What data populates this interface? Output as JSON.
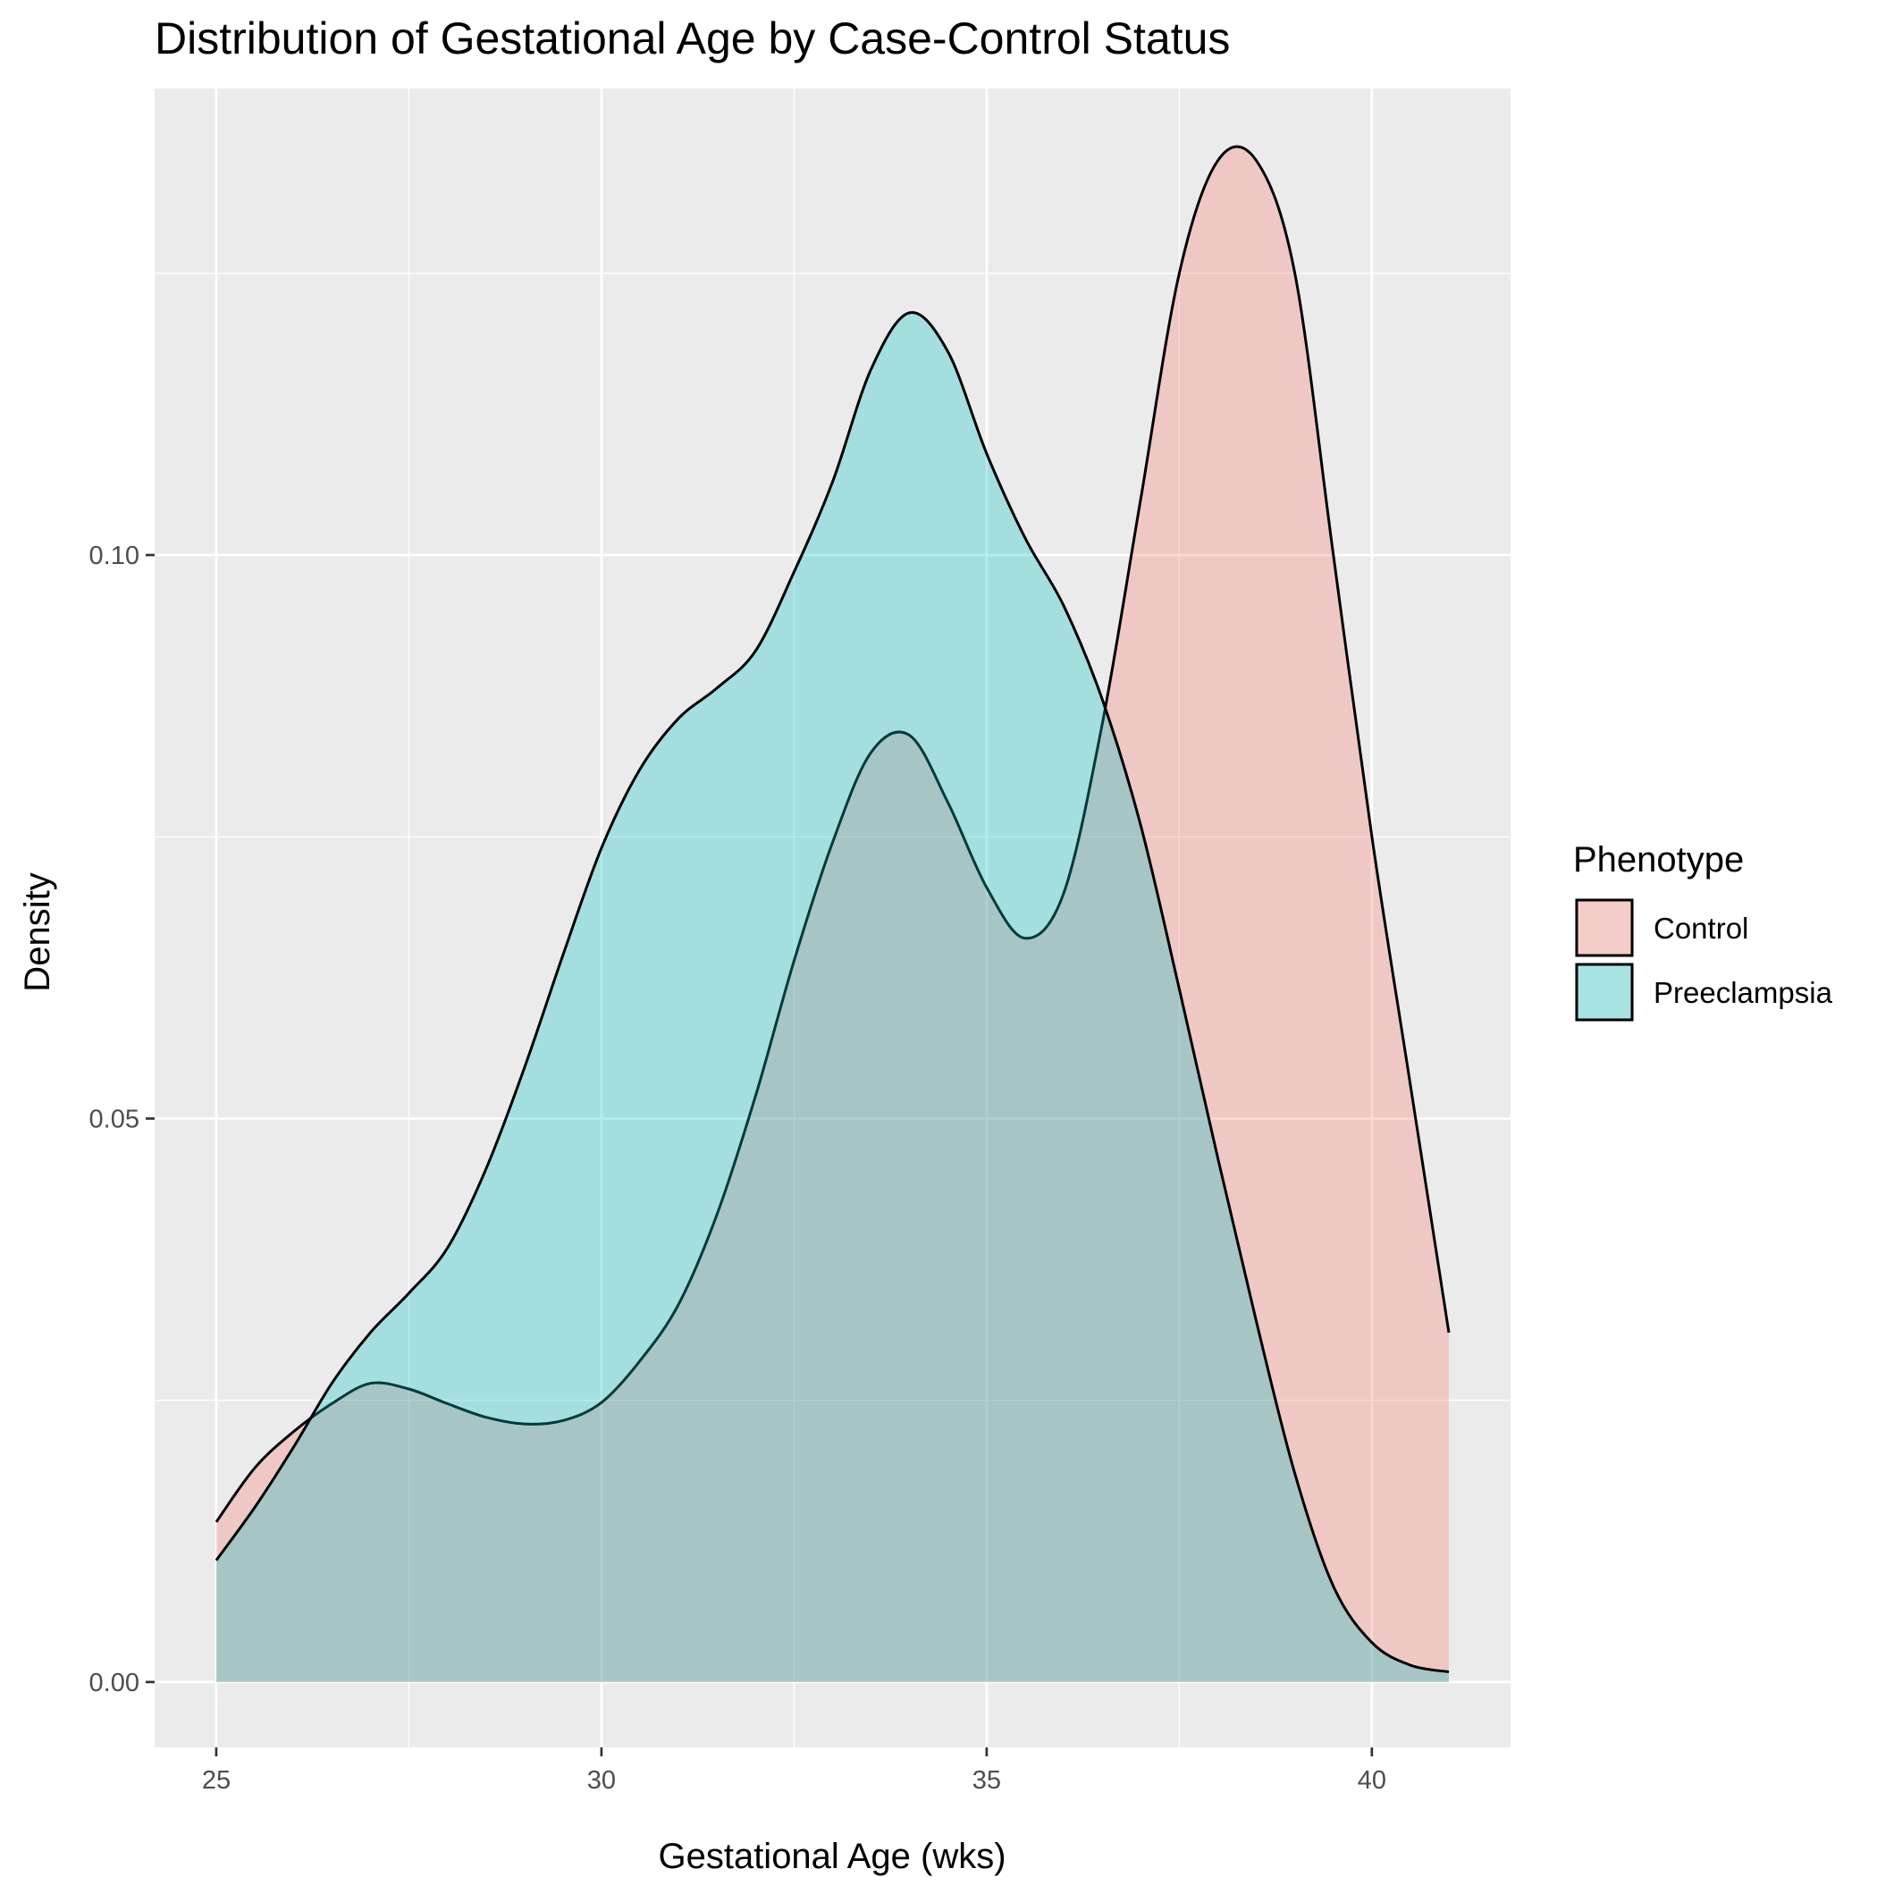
{
  "chart_data": {
    "type": "area",
    "title": "Distribution of Gestational Age by Case-Control Status",
    "xlabel": "Gestational Age (wks)",
    "ylabel": "Density",
    "xlim": [
      24.2,
      41.8
    ],
    "ylim": [
      -0.0058,
      0.1414
    ],
    "x_ticks": [
      25,
      30,
      35,
      40
    ],
    "x_tick_labels": [
      "25",
      "30",
      "35",
      "40"
    ],
    "y_ticks": [
      0.0,
      0.05,
      0.1
    ],
    "y_tick_labels": [
      "0.00",
      "0.05",
      "0.10"
    ],
    "grid": true,
    "legend_title": "Phenotype",
    "legend_position": "right",
    "series": [
      {
        "name": "Control",
        "color": "#F8766D",
        "x": [
          25,
          25.5,
          26,
          26.5,
          27,
          27.5,
          28,
          28.5,
          29,
          29.5,
          30,
          30.5,
          31,
          31.5,
          32,
          32.5,
          33,
          33.5,
          34,
          34.5,
          35,
          35.5,
          36,
          36.5,
          37,
          37.5,
          38,
          38.5,
          39,
          39.5,
          40,
          40.5,
          41
        ],
        "y": [
          0.0142,
          0.019,
          0.0222,
          0.0247,
          0.0265,
          0.026,
          0.0247,
          0.0235,
          0.0229,
          0.0232,
          0.0248,
          0.0285,
          0.0335,
          0.0415,
          0.052,
          0.064,
          0.0745,
          0.0825,
          0.084,
          0.078,
          0.0705,
          0.066,
          0.07,
          0.085,
          0.105,
          0.125,
          0.135,
          0.135,
          0.125,
          0.1,
          0.075,
          0.053,
          0.031
        ]
      },
      {
        "name": "Preeclampsia",
        "color": "#00BFC4",
        "x": [
          25,
          25.5,
          26,
          26.5,
          27,
          27.5,
          28,
          28.5,
          29,
          29.5,
          30,
          30.5,
          31,
          31.5,
          32,
          32.5,
          33,
          33.5,
          34,
          34.5,
          35,
          35.5,
          36,
          36.5,
          37,
          37.5,
          38,
          38.5,
          39,
          39.5,
          40,
          40.5,
          41
        ],
        "y": [
          0.0108,
          0.0155,
          0.0208,
          0.0265,
          0.031,
          0.0345,
          0.0385,
          0.0455,
          0.0545,
          0.0645,
          0.074,
          0.081,
          0.0855,
          0.0882,
          0.0915,
          0.0985,
          0.1065,
          0.1165,
          0.1215,
          0.118,
          0.109,
          0.1015,
          0.0955,
          0.0872,
          0.076,
          0.0615,
          0.0465,
          0.032,
          0.0185,
          0.0085,
          0.0035,
          0.0015,
          0.0009
        ]
      }
    ]
  }
}
